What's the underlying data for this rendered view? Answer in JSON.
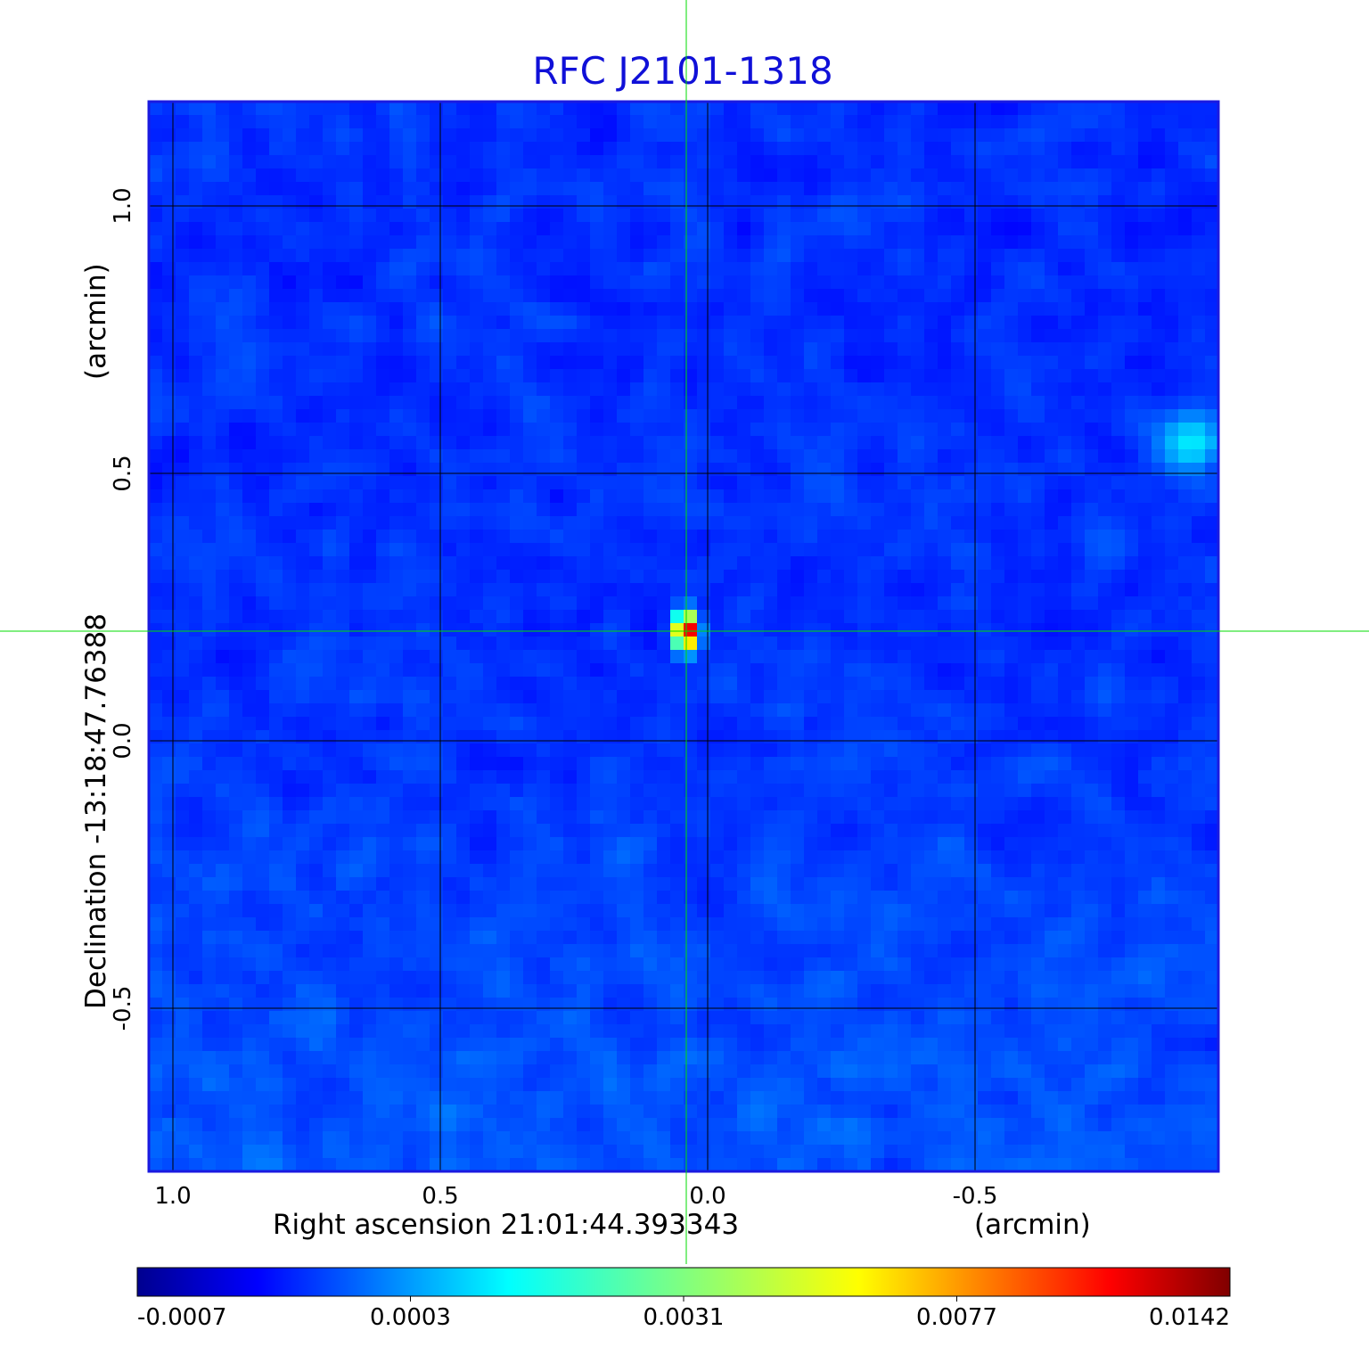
{
  "chart_data": {
    "type": "heatmap",
    "title": "RFC J2101-1318",
    "xlabel": "Right ascension  21:01:44.393343",
    "xunit": "(arcmin)",
    "ylabel": "Declination  -13:18:47.76388",
    "yunit": "(arcmin)",
    "x_ticks": [
      "1.0",
      "0.5",
      "0.0",
      "-0.5"
    ],
    "x_tick_values": [
      1.0,
      0.5,
      0.0,
      -0.5
    ],
    "y_ticks": [
      "1.0",
      "0.5",
      "0.0",
      "-0.5"
    ],
    "y_tick_values": [
      1.0,
      0.5,
      0.0,
      -0.5
    ],
    "xlim": [
      1.045,
      -0.955
    ],
    "ylim": [
      -0.805,
      1.195
    ],
    "grid": true,
    "crosshair": {
      "x": 0.04,
      "y": 0.205,
      "color": "#00dd00"
    },
    "sources": [
      {
        "x": 0.04,
        "y": 0.205,
        "peak": 0.0142
      },
      {
        "x": -0.9,
        "y": 0.56,
        "peak": 0.0025
      }
    ],
    "colorbar": {
      "colormap": "jet",
      "ticks": [
        "-0.0007",
        "0.0003",
        "0.0031",
        "0.0077",
        "0.0142"
      ],
      "tick_values": [
        -0.0007,
        0.0003,
        0.0031,
        0.0077,
        0.0142
      ]
    },
    "frame_color": "#1a1ae0",
    "grid_color": "#000000"
  }
}
